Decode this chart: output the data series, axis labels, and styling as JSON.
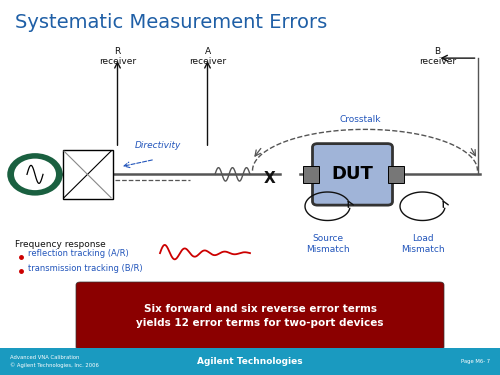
{
  "title": "Systematic Measurement Errors",
  "title_color": "#1F5FA6",
  "title_fontsize": 14,
  "bg_color": "#FFFFFF",
  "footer_bg": "#1A9AC0",
  "footer_text_left": "Advanced VNA Calibration\n© Agilent Technologies, Inc. 2006",
  "footer_text_center": "Agilent Technologies",
  "footer_text_right": "Page M6- 7",
  "banner_text": "Six forward and six reverse error terms\nyields 12 error terms for two-port devices",
  "banner_bg": "#8B0000",
  "banner_text_color": "#FFFFFF",
  "receiver_R": "R\nreceiver",
  "receiver_A": "A\nreceiver",
  "receiver_B": "B\nreceiver",
  "label_directivity": "Directivity",
  "label_crosstalk": "Crosstalk",
  "label_source_mismatch": "Source\nMismatch",
  "label_load_mismatch": "Load\nMismatch",
  "label_dut": "DUT",
  "label_freq_response": "Frequency response",
  "label_reflection": "reflection tracking (A/R)",
  "label_transmission": "transmission tracking (B/R)",
  "blue_label_color": "#2255BB",
  "red_line_color": "#CC0000",
  "dut_fill": "#A0B4D8",
  "dut_border": "#333333",
  "signal_color": "#555555",
  "dark_color": "#111111"
}
